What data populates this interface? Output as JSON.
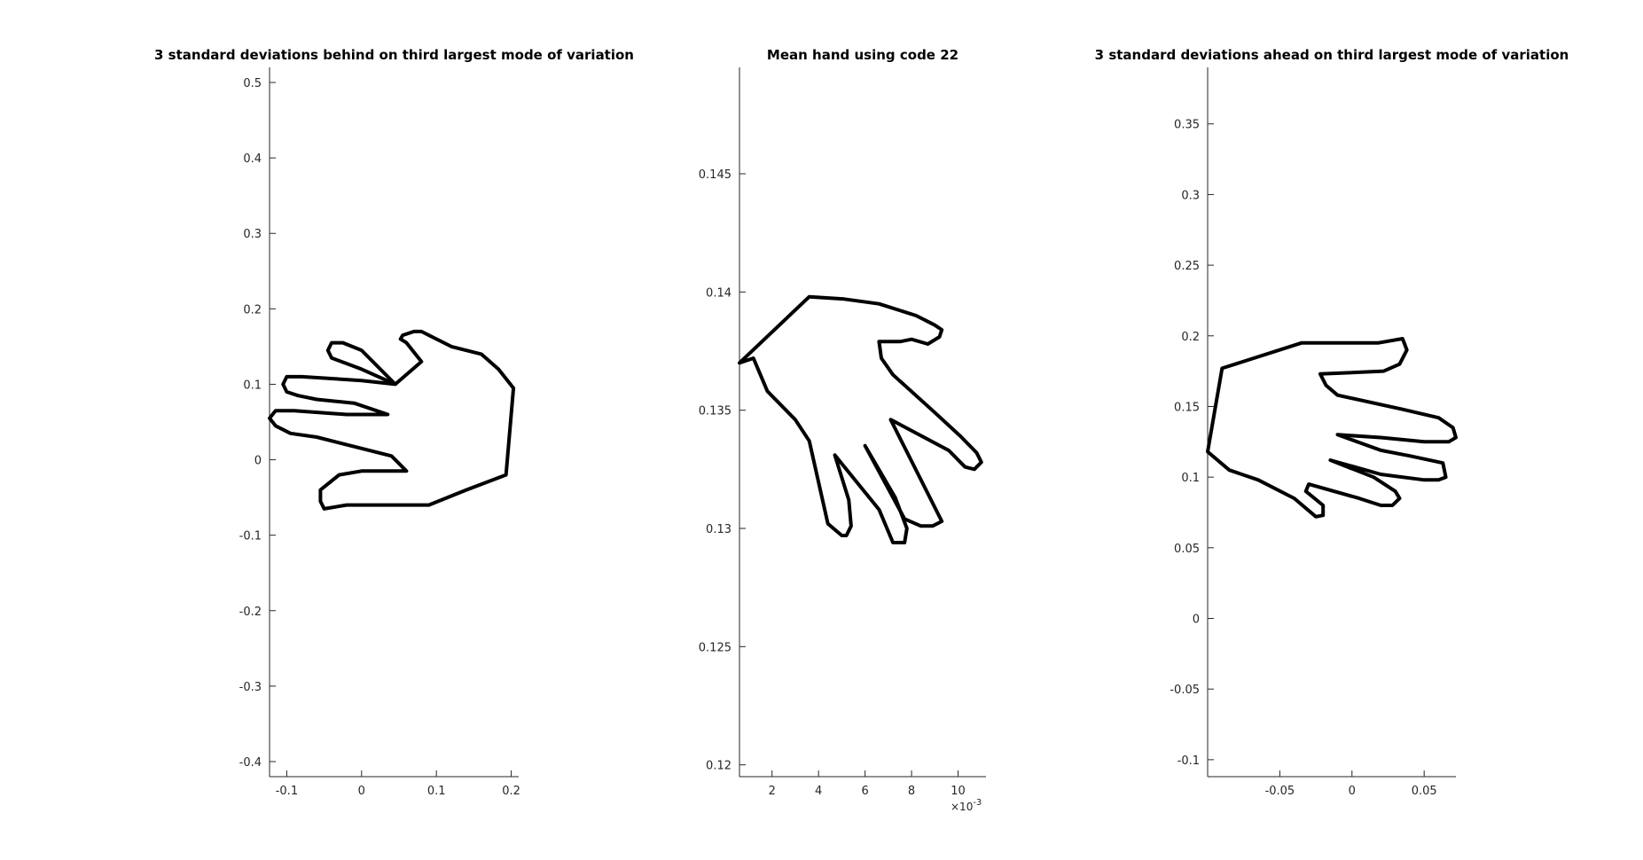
{
  "chart_data": [
    {
      "type": "line",
      "title": "3 standard deviations behind on third largest mode of variation",
      "xlabel": "",
      "ylabel": "",
      "xlim": [
        -0.123,
        0.21
      ],
      "ylim": [
        -0.42,
        0.52
      ],
      "xticks": [
        -0.1,
        0,
        0.1,
        0.2
      ],
      "xtick_labels": [
        "-0.1",
        "0",
        "0.1",
        "0.2"
      ],
      "yticks": [
        -0.4,
        -0.3,
        -0.2,
        -0.1,
        0,
        0.1,
        0.2,
        0.3,
        0.4,
        0.5
      ],
      "ytick_labels": [
        "-0.4",
        "-0.3",
        "-0.2",
        "-0.1",
        "0",
        "0.1",
        "0.2",
        "0.3",
        "0.4",
        "0.5"
      ],
      "grid": false,
      "series": [
        {
          "x": [
            0.193,
            0.203,
            0.183,
            0.16,
            0.12,
            0.08,
            0.07,
            0.055,
            0.052,
            0.06,
            0.08,
            0.045,
            0.0,
            -0.04,
            -0.045,
            -0.04,
            -0.025,
            0.0,
            0.045,
            0.0,
            -0.08,
            -0.1,
            -0.105,
            -0.1,
            -0.085,
            -0.06,
            -0.01,
            0.035,
            -0.02,
            -0.09,
            -0.115,
            -0.123,
            -0.115,
            -0.095,
            -0.06,
            0.0,
            0.04,
            0.05,
            0.06,
            0.0,
            -0.03,
            -0.055,
            -0.055,
            -0.05,
            -0.02,
            0.0,
            0.02,
            0.09,
            0.14
          ],
          "y": [
            -0.02,
            0.095,
            0.12,
            0.14,
            0.15,
            0.17,
            0.17,
            0.165,
            0.16,
            0.155,
            0.13,
            0.1,
            0.12,
            0.135,
            0.145,
            0.155,
            0.155,
            0.145,
            0.1,
            0.105,
            0.11,
            0.11,
            0.1,
            0.09,
            0.085,
            0.08,
            0.075,
            0.06,
            0.06,
            0.065,
            0.065,
            0.055,
            0.045,
            0.035,
            0.03,
            0.015,
            0.005,
            -0.005,
            -0.015,
            -0.015,
            -0.02,
            -0.04,
            -0.055,
            -0.065,
            -0.06,
            -0.06,
            -0.06,
            -0.06,
            -0.04
          ]
        }
      ]
    },
    {
      "type": "line",
      "title": "Mean hand using code 22",
      "xlabel": "",
      "ylabel": "",
      "x_exponent_label": "×10",
      "x_exponent_power": "-3",
      "xlim": [
        0.0006,
        0.0112
      ],
      "ylim": [
        0.1195,
        0.1495
      ],
      "xticks": [
        0.002,
        0.004,
        0.006,
        0.008,
        0.01
      ],
      "xtick_labels": [
        "2",
        "4",
        "6",
        "8",
        "10"
      ],
      "yticks": [
        0.12,
        0.125,
        0.13,
        0.135,
        0.14,
        0.145
      ],
      "ytick_labels": [
        "0.12",
        "0.125",
        "0.13",
        "0.135",
        "0.14",
        "0.145"
      ],
      "grid": false,
      "series": [
        {
          "x": [
            0.0006,
            0.0036,
            0.0051,
            0.0066,
            0.0082,
            0.009,
            0.0093,
            0.0092,
            0.0087,
            0.008,
            0.0075,
            0.0066,
            0.0067,
            0.0072,
            0.009,
            0.0101,
            0.0108,
            0.011,
            0.0107,
            0.0103,
            0.0096,
            0.0071,
            0.0093,
            0.0089,
            0.0084,
            0.0077,
            0.006,
            0.0073,
            0.0078,
            0.0077,
            0.0072,
            0.0066,
            0.0047,
            0.0053,
            0.0054,
            0.0052,
            0.005,
            0.0044,
            0.0036,
            0.003,
            0.0018,
            0.0012
          ],
          "y": [
            0.137,
            0.1398,
            0.1397,
            0.1395,
            0.139,
            0.1386,
            0.1384,
            0.1381,
            0.1378,
            0.138,
            0.1379,
            0.1379,
            0.1372,
            0.1365,
            0.1349,
            0.1339,
            0.1332,
            0.1328,
            0.1325,
            0.1326,
            0.1333,
            0.1346,
            0.1303,
            0.1301,
            0.1301,
            0.1304,
            0.1335,
            0.1313,
            0.13,
            0.1294,
            0.1294,
            0.1308,
            0.1331,
            0.1312,
            0.1301,
            0.1297,
            0.1297,
            0.1302,
            0.1337,
            0.1346,
            0.1358,
            0.1372
          ]
        }
      ]
    },
    {
      "type": "line",
      "title": "3 standard deviations ahead on third largest mode of variation",
      "xlabel": "",
      "ylabel": "",
      "xlim": [
        -0.1,
        0.072
      ],
      "ylim": [
        -0.112,
        0.39
      ],
      "xticks": [
        -0.05,
        0,
        0.05
      ],
      "xtick_labels": [
        "-0.05",
        "0",
        "0.05"
      ],
      "yticks": [
        -0.1,
        -0.05,
        0,
        0.05,
        0.1,
        0.15,
        0.2,
        0.25,
        0.3,
        0.35
      ],
      "ytick_labels": [
        "-0.1",
        "-0.05",
        "0",
        "0.05",
        "0.1",
        "0.15",
        "0.2",
        "0.25",
        "0.3",
        "0.35"
      ],
      "grid": false,
      "series": [
        {
          "x": [
            -0.1,
            -0.09,
            -0.035,
            0.018,
            0.035,
            0.038,
            0.033,
            0.022,
            -0.022,
            -0.018,
            -0.01,
            0.035,
            0.06,
            0.07,
            0.072,
            0.067,
            0.05,
            0.02,
            -0.01,
            0.02,
            0.04,
            0.063,
            0.065,
            0.06,
            0.05,
            0.02,
            -0.015,
            0.015,
            0.03,
            0.033,
            0.028,
            0.02,
            0.005,
            -0.03,
            -0.032,
            -0.02,
            -0.02,
            -0.025,
            -0.04,
            -0.065,
            -0.085
          ],
          "y": [
            0.118,
            0.177,
            0.195,
            0.195,
            0.198,
            0.19,
            0.18,
            0.175,
            0.173,
            0.165,
            0.158,
            0.148,
            0.142,
            0.135,
            0.128,
            0.125,
            0.125,
            0.128,
            0.13,
            0.119,
            0.115,
            0.11,
            0.1,
            0.098,
            0.098,
            0.102,
            0.112,
            0.1,
            0.09,
            0.085,
            0.08,
            0.08,
            0.085,
            0.095,
            0.09,
            0.08,
            0.073,
            0.072,
            0.085,
            0.098,
            0.105
          ]
        }
      ]
    }
  ]
}
